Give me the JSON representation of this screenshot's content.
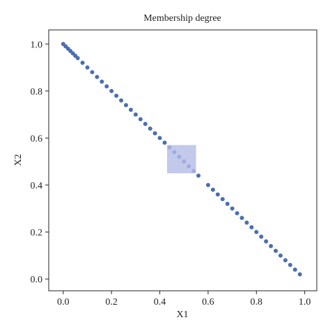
{
  "chart_data": {
    "type": "scatter",
    "title": "Membership degree",
    "x_label": "X1",
    "y_label": "X2",
    "x": [
      0,
      0.01,
      0.02,
      0.03,
      0.04,
      0.05,
      0.06,
      0.08,
      0.1,
      0.12,
      0.14,
      0.16,
      0.18,
      0.2,
      0.22,
      0.24,
      0.26,
      0.28,
      0.3,
      0.32,
      0.34,
      0.36,
      0.38,
      0.4,
      0.42,
      0.44,
      0.46,
      0.48,
      0.5,
      0.52,
      0.54,
      0.56,
      0.6,
      0.62,
      0.64,
      0.66,
      0.68,
      0.7,
      0.72,
      0.74,
      0.76,
      0.78,
      0.8,
      0.82,
      0.84,
      0.86,
      0.88,
      0.9,
      0.92,
      0.94,
      0.96,
      0.98
    ],
    "values": [
      1,
      0.99,
      0.98,
      0.97,
      0.96,
      0.95,
      0.94,
      0.92,
      0.9,
      0.88,
      0.86,
      0.84,
      0.82,
      0.8,
      0.78,
      0.76,
      0.74,
      0.72,
      0.7,
      0.68,
      0.66,
      0.64,
      0.62,
      0.6,
      0.58,
      0.56,
      0.54,
      0.52,
      0.5,
      0.48,
      0.46,
      0.44,
      0.4,
      0.38,
      0.36,
      0.34,
      0.32,
      0.3,
      0.28,
      0.26,
      0.24,
      0.22,
      0.2,
      0.18,
      0.16,
      0.14,
      0.12,
      0.1,
      0.08,
      0.06,
      0.04,
      0.02
    ],
    "color": "#4a6fb0",
    "highlight": {
      "xlim": [
        0.43,
        0.55
      ],
      "ylim": [
        0.45,
        0.57
      ],
      "color": "#b4bce6"
    },
    "xlim": [
      -0.06,
      1.05
    ],
    "ylim": [
      -0.05,
      1.06
    ],
    "xticks": [
      {
        "value": 0,
        "label": "0.0"
      },
      0.2,
      0.4,
      0.6,
      0.8,
      {
        "value": 1,
        "label": "1.0"
      }
    ],
    "yticks": [
      {
        "value": 0,
        "label": "0.0"
      },
      0.2,
      0.4,
      0.6,
      0.8,
      {
        "value": 1,
        "label": "1.0"
      }
    ]
  }
}
